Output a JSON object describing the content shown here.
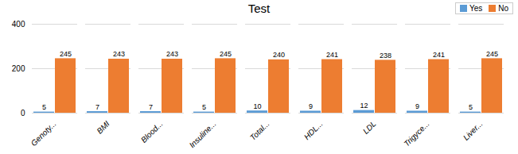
{
  "chart_data": {
    "type": "bar",
    "title": "Test",
    "categories": [
      "Genoty...",
      "BMI",
      "Blood...",
      "Insuline...",
      "Total...",
      "HDL...",
      "LDL",
      "Trigyce...",
      "Liver..."
    ],
    "series": [
      {
        "name": "Yes",
        "color": "#5B9BD5",
        "values": [
          5,
          7,
          7,
          5,
          10,
          9,
          12,
          9,
          5
        ]
      },
      {
        "name": "No",
        "color": "#ED7D31",
        "values": [
          245,
          243,
          243,
          245,
          240,
          241,
          238,
          241,
          245
        ]
      }
    ],
    "ylim": [
      0,
      400
    ],
    "yticks": [
      0,
      200,
      400
    ],
    "grid": true,
    "legend": "upper right",
    "data_labels": true
  }
}
